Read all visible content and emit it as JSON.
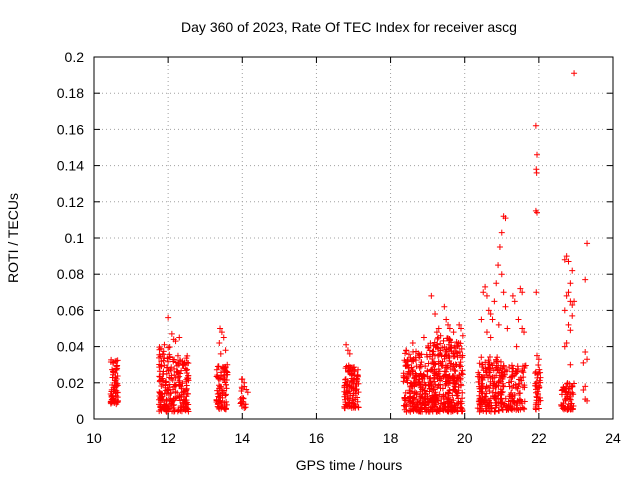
{
  "chart_data": {
    "type": "scatter",
    "title": "Day 360 of 2023, Rate Of TEC Index for receiver ascg",
    "xlabel": "GPS time / hours",
    "ylabel": "ROTI / TECUs",
    "xlim": [
      10,
      24
    ],
    "ylim": [
      0,
      0.2
    ],
    "xticks": [
      10,
      12,
      14,
      16,
      18,
      20,
      22,
      24
    ],
    "xtick_labels": [
      "10",
      "12",
      "14",
      "16",
      "18",
      "20",
      "22",
      "24"
    ],
    "yticks": [
      0,
      0.02,
      0.04,
      0.06,
      0.08,
      0.1,
      0.12,
      0.14,
      0.16,
      0.18,
      0.2
    ],
    "ytick_labels": [
      "0",
      "0.02",
      "0.04",
      "0.06",
      "0.08",
      "0.1",
      "0.12",
      "0.14",
      "0.16",
      "0.18",
      "0.2"
    ],
    "grid": true,
    "marker": "plus",
    "marker_color": "#ff0000",
    "clusters": [
      {
        "x": [
          10.45,
          10.65
        ],
        "y": [
          0.008,
          0.033
        ],
        "n": 70
      },
      {
        "x": [
          11.75,
          12.05
        ],
        "y": [
          0.004,
          0.04
        ],
        "n": 110
      },
      {
        "x": [
          12.05,
          12.55
        ],
        "y": [
          0.004,
          0.035
        ],
        "n": 130
      },
      {
        "x": [
          13.3,
          13.6
        ],
        "y": [
          0.005,
          0.03
        ],
        "n": 80
      },
      {
        "x": [
          13.95,
          14.15
        ],
        "y": [
          0.006,
          0.022
        ],
        "n": 20
      },
      {
        "x": [
          16.75,
          17.15
        ],
        "y": [
          0.006,
          0.03
        ],
        "n": 110
      },
      {
        "x": [
          18.35,
          19.0
        ],
        "y": [
          0.004,
          0.038
        ],
        "n": 200
      },
      {
        "x": [
          19.0,
          19.95
        ],
        "y": [
          0.004,
          0.045
        ],
        "n": 350
      },
      {
        "x": [
          20.35,
          21.0
        ],
        "y": [
          0.004,
          0.035
        ],
        "n": 180
      },
      {
        "x": [
          21.0,
          21.65
        ],
        "y": [
          0.005,
          0.03
        ],
        "n": 120
      },
      {
        "x": [
          21.9,
          22.05
        ],
        "y": [
          0.005,
          0.03
        ],
        "n": 40
      },
      {
        "x": [
          22.6,
          22.95
        ],
        "y": [
          0.005,
          0.02
        ],
        "n": 60
      }
    ],
    "points": [
      [
        12.0,
        0.056
      ],
      [
        12.1,
        0.047
      ],
      [
        12.15,
        0.044
      ],
      [
        12.3,
        0.045
      ],
      [
        12.2,
        0.043
      ],
      [
        11.9,
        0.041
      ],
      [
        13.4,
        0.05
      ],
      [
        13.45,
        0.048
      ],
      [
        13.5,
        0.045
      ],
      [
        13.38,
        0.042
      ],
      [
        13.55,
        0.038
      ],
      [
        13.42,
        0.036
      ],
      [
        14.0,
        0.022
      ],
      [
        14.05,
        0.02
      ],
      [
        16.8,
        0.041
      ],
      [
        16.85,
        0.038
      ],
      [
        16.9,
        0.036
      ],
      [
        18.6,
        0.042
      ],
      [
        18.9,
        0.045
      ],
      [
        19.1,
        0.068
      ],
      [
        19.2,
        0.058
      ],
      [
        19.3,
        0.05
      ],
      [
        19.45,
        0.062
      ],
      [
        19.5,
        0.055
      ],
      [
        19.55,
        0.052
      ],
      [
        19.6,
        0.05
      ],
      [
        19.7,
        0.048
      ],
      [
        19.85,
        0.052
      ],
      [
        19.9,
        0.05
      ],
      [
        19.95,
        0.046
      ],
      [
        19.35,
        0.046
      ],
      [
        19.25,
        0.048
      ],
      [
        20.5,
        0.07
      ],
      [
        20.55,
        0.073
      ],
      [
        20.6,
        0.068
      ],
      [
        20.65,
        0.06
      ],
      [
        20.7,
        0.058
      ],
      [
        20.75,
        0.055
      ],
      [
        20.8,
        0.065
      ],
      [
        20.85,
        0.075
      ],
      [
        20.9,
        0.085
      ],
      [
        20.95,
        0.095
      ],
      [
        21.0,
        0.103
      ],
      [
        21.05,
        0.112
      ],
      [
        21.1,
        0.111
      ],
      [
        21.0,
        0.08
      ],
      [
        21.05,
        0.07
      ],
      [
        21.1,
        0.062
      ],
      [
        20.92,
        0.052
      ],
      [
        21.15,
        0.05
      ],
      [
        20.45,
        0.055
      ],
      [
        20.6,
        0.048
      ],
      [
        20.7,
        0.045
      ],
      [
        21.3,
        0.068
      ],
      [
        21.35,
        0.065
      ],
      [
        21.5,
        0.072
      ],
      [
        21.55,
        0.07
      ],
      [
        21.45,
        0.055
      ],
      [
        21.55,
        0.05
      ],
      [
        21.6,
        0.048
      ],
      [
        21.4,
        0.04
      ],
      [
        21.92,
        0.162
      ],
      [
        21.95,
        0.146
      ],
      [
        21.93,
        0.138
      ],
      [
        21.94,
        0.136
      ],
      [
        21.92,
        0.115
      ],
      [
        21.95,
        0.114
      ],
      [
        21.93,
        0.07
      ],
      [
        21.95,
        0.035
      ],
      [
        22.0,
        0.033
      ],
      [
        22.7,
        0.088
      ],
      [
        22.75,
        0.09
      ],
      [
        22.8,
        0.087
      ],
      [
        22.9,
        0.082
      ],
      [
        22.85,
        0.075
      ],
      [
        22.8,
        0.07
      ],
      [
        22.75,
        0.068
      ],
      [
        22.85,
        0.065
      ],
      [
        22.9,
        0.063
      ],
      [
        22.7,
        0.06
      ],
      [
        22.95,
        0.065
      ],
      [
        22.9,
        0.057
      ],
      [
        22.8,
        0.052
      ],
      [
        22.85,
        0.049
      ],
      [
        22.75,
        0.042
      ],
      [
        22.7,
        0.04
      ],
      [
        22.85,
        0.03
      ],
      [
        22.95,
        0.191
      ],
      [
        23.3,
        0.097
      ],
      [
        23.25,
        0.077
      ],
      [
        23.25,
        0.037
      ],
      [
        23.3,
        0.033
      ],
      [
        23.2,
        0.031
      ],
      [
        23.25,
        0.018
      ],
      [
        23.2,
        0.016
      ],
      [
        23.25,
        0.011
      ],
      [
        23.3,
        0.01
      ]
    ]
  }
}
